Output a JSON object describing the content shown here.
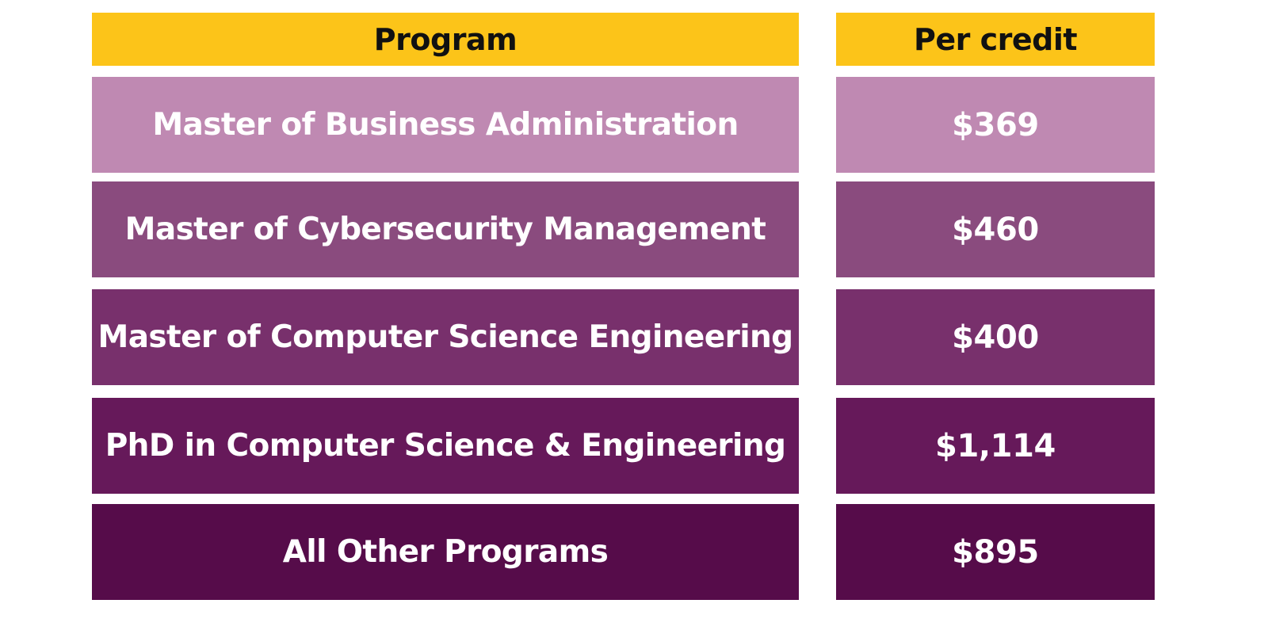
{
  "table": {
    "headers": {
      "program": "Program",
      "per_credit": "Per credit"
    },
    "header_color": "#fcc419",
    "rows": [
      {
        "program": "Master of Business Administration",
        "per_credit": "$369",
        "color": "#bf89b2"
      },
      {
        "program": "Master of Cybersecurity Management",
        "per_credit": "$460",
        "color": "#8a4b7e"
      },
      {
        "program": "Master of Computer Science Engineering",
        "per_credit": "$400",
        "color": "#78306c"
      },
      {
        "program": "PhD in Computer Science & Engineering",
        "per_credit": "$1,114",
        "color": "#66195a"
      },
      {
        "program": "All Other Programs",
        "per_credit": "$895",
        "color": "#560c4a"
      }
    ]
  }
}
